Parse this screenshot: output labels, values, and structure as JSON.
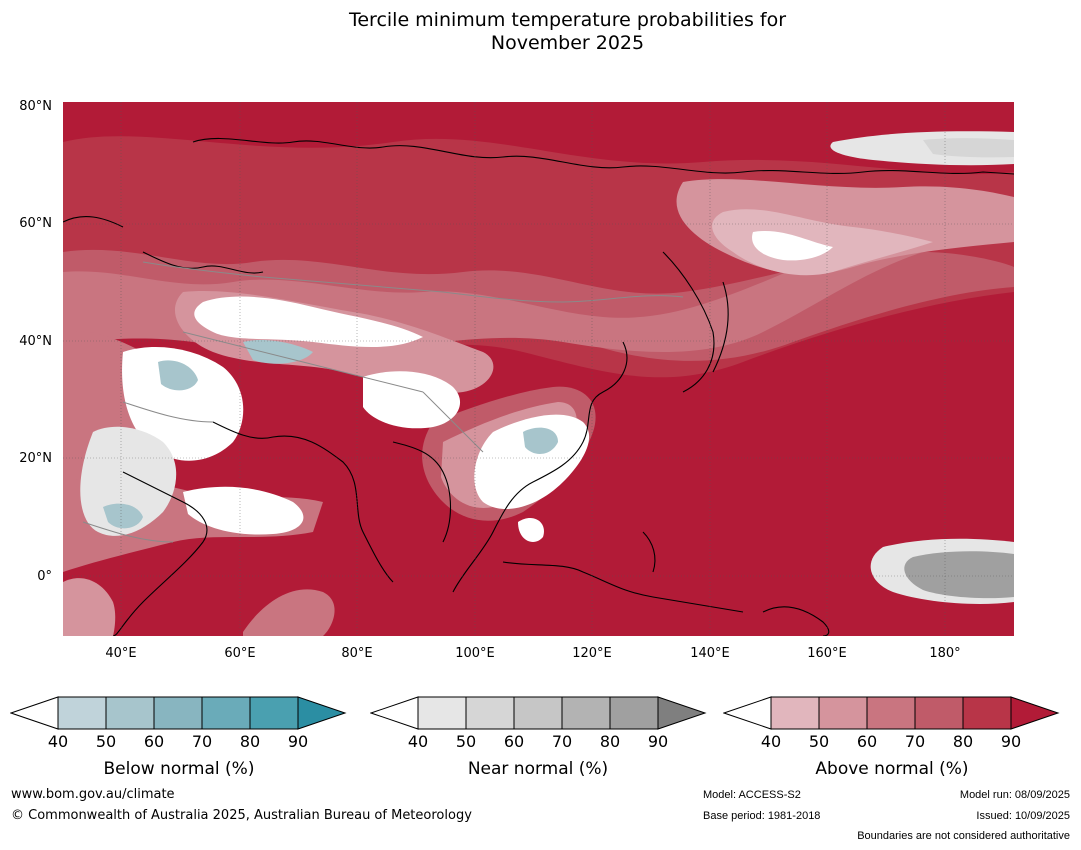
{
  "title_line1": "Tercile minimum temperature probabilities for",
  "title_line2": "November 2025",
  "lat_labels": [
    "80°N",
    "60°N",
    "40°N",
    "20°N",
    "0°"
  ],
  "lon_labels": [
    "40°E",
    "60°E",
    "80°E",
    "100°E",
    "120°E",
    "140°E",
    "160°E",
    "180°"
  ],
  "colorbars": [
    {
      "title": "Below normal (%)",
      "ticks": [
        "40",
        "50",
        "60",
        "70",
        "80",
        "90"
      ],
      "colors": [
        "#ffffff",
        "#c0d3da",
        "#a7c5cc",
        "#88b5c0",
        "#6aabb9",
        "#4aa0b0",
        "#2b8ea3"
      ]
    },
    {
      "title": "Near normal (%)",
      "ticks": [
        "40",
        "50",
        "60",
        "70",
        "80",
        "90"
      ],
      "colors": [
        "#ffffff",
        "#e6e6e6",
        "#d6d6d6",
        "#c6c6c6",
        "#b3b3b3",
        "#a0a0a0",
        "#7f7f7f"
      ]
    },
    {
      "title": "Above normal (%)",
      "ticks": [
        "40",
        "50",
        "60",
        "70",
        "80",
        "90"
      ],
      "colors": [
        "#ffffff",
        "#e1b6bd",
        "#d5949d",
        "#c97580",
        "#c05b69",
        "#b83548",
        "#b21b37"
      ]
    }
  ],
  "footer": {
    "website": "www.bom.gov.au/climate",
    "copyright": "© Commonwealth of Australia 2025, Australian Bureau of Meteorology",
    "model": "Model: ACCESS-S2",
    "base_period": "Base period: 1981-2018",
    "model_run": "Model run: 08/09/2025",
    "issued": "Issued: 10/09/2025",
    "disclaimer": "Boundaries are not considered authoritative"
  }
}
